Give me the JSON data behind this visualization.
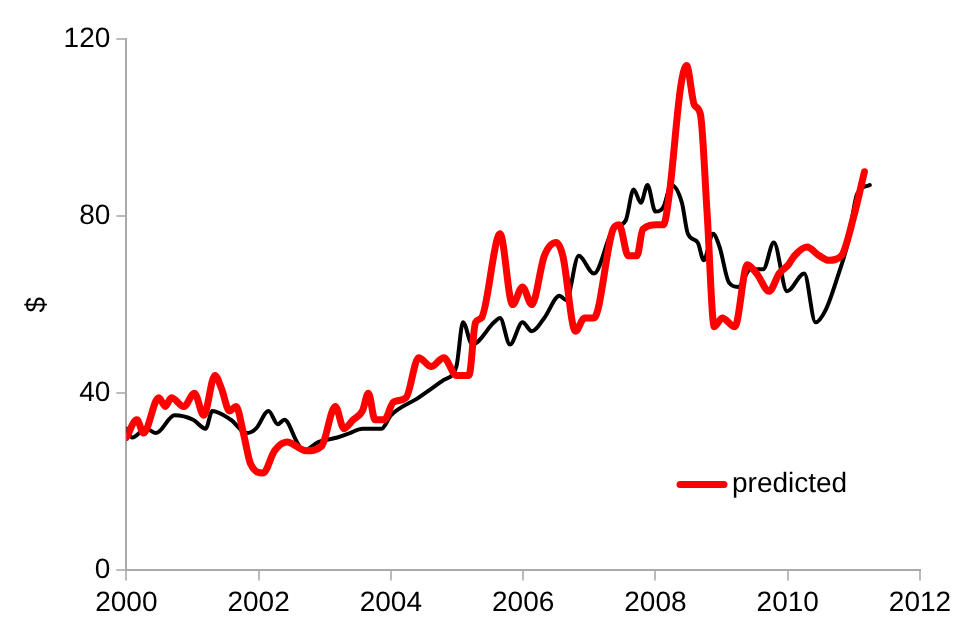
{
  "chart_data": {
    "type": "line",
    "ylabel": "$",
    "xlim": [
      2000,
      2012
    ],
    "xticks": [
      2000,
      2002,
      2004,
      2006,
      2008,
      2010,
      2012
    ],
    "ylim": [
      0,
      120
    ],
    "yticks": [
      0,
      40,
      80,
      120
    ],
    "grid": false,
    "legend": "bottom right",
    "marker": "none",
    "line_style": "solid",
    "series": [
      {
        "color": "#000000",
        "x": [
          2000,
          2000.09,
          2000.3,
          2000.45,
          2000.73,
          2001.01,
          2001.2,
          2001.3,
          2001.58,
          2001.82,
          2001.96,
          2002.15,
          2002.29,
          2002.39,
          2002.58,
          2002.67,
          2002.91,
          2003.19,
          2003.38,
          2003.57,
          2003.86,
          2004,
          2004.42,
          2004.8,
          2004.99,
          2005.09,
          2005.23,
          2005.56,
          2005.65,
          2005.8,
          2005.99,
          2006.13,
          2006.32,
          2006.55,
          2006.65,
          2006.84,
          2007.07,
          2007.36,
          2007.55,
          2007.67,
          2007.78,
          2007.88,
          2008,
          2008.12,
          2008.24,
          2008.4,
          2008.49,
          2008.64,
          2008.73,
          2008.87,
          2008.97,
          2009.11,
          2009.25,
          2009.44,
          2009.63,
          2009.79,
          2009.99,
          2010.25,
          2010.42,
          2010.58,
          2010.77,
          2010.91,
          2011.05,
          2011.24
        ],
        "values": [
          32,
          30,
          32,
          31,
          35,
          34,
          32,
          36,
          34,
          31,
          32,
          36,
          33,
          34,
          29,
          27,
          29,
          30,
          31,
          32,
          32,
          35,
          39,
          43,
          46,
          56,
          51,
          56,
          57,
          51,
          56,
          54,
          57,
          62,
          61,
          71,
          67,
          77,
          79,
          86,
          83,
          87,
          81,
          82,
          87,
          83,
          76,
          74,
          70,
          76,
          73,
          65,
          64,
          68,
          68,
          74,
          63,
          67,
          56,
          59,
          67,
          74,
          85,
          87
        ]
      },
      {
        "name": "predicted",
        "color": "#ff0000",
        "x": [
          2000,
          2000.16,
          2000.26,
          2000.49,
          2000.59,
          2000.68,
          2000.87,
          2001.03,
          2001.17,
          2001.34,
          2001.44,
          2001.56,
          2001.66,
          2001.77,
          2001.88,
          2002.07,
          2002.24,
          2002.43,
          2002.72,
          2002.95,
          2003.16,
          2003.29,
          2003.43,
          2003.57,
          2003.66,
          2003.76,
          2003.9,
          2004.04,
          2004.23,
          2004.42,
          2004.61,
          2004.8,
          2004.99,
          2005.18,
          2005.28,
          2005.37,
          2005.61,
          2005.65,
          2005.84,
          2005.99,
          2006.13,
          2006.32,
          2006.5,
          2006.6,
          2006.79,
          2006.93,
          2007.07,
          2007.36,
          2007.45,
          2007.59,
          2007.72,
          2007.81,
          2008.02,
          2008.12,
          2008.21,
          2008.38,
          2008.47,
          2008.59,
          2008.68,
          2008.78,
          2008.89,
          2009.01,
          2009.2,
          2009.39,
          2009.53,
          2009.72,
          2009.87,
          2010.01,
          2010.1,
          2010.29,
          2010.48,
          2010.62,
          2010.81,
          2011,
          2011.16
        ],
        "values": [
          30,
          34,
          31,
          39,
          37,
          39,
          37,
          40,
          35,
          44,
          41,
          36,
          37,
          31,
          24,
          22,
          27,
          29,
          27,
          28,
          37,
          32,
          34,
          36,
          40,
          34,
          34,
          38,
          39,
          48,
          46,
          48,
          44,
          44,
          56,
          57,
          75,
          76,
          60,
          64,
          60,
          71,
          74,
          71,
          54,
          57,
          57,
          77,
          78,
          71,
          71,
          77,
          78,
          78,
          85,
          109,
          114,
          105,
          103,
          81,
          55,
          57,
          55,
          69,
          67,
          63,
          67,
          69,
          71,
          73,
          71,
          70,
          71,
          80,
          90
        ]
      }
    ]
  }
}
